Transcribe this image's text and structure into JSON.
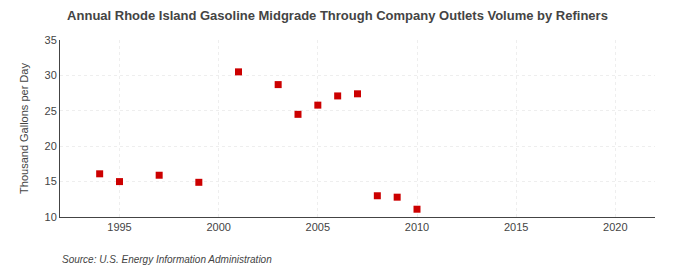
{
  "chart_data": {
    "type": "scatter",
    "title": "Annual Rhode Island Gasoline Midgrade Through Company Outlets Volume by Refiners",
    "ylabel": "Thousand Gallons per Day",
    "annotations": [
      "Source: U.S. Energy Information Administration"
    ],
    "x": [
      1994,
      1995,
      1997,
      1999,
      2001,
      2003,
      2004,
      2005,
      2006,
      2007,
      2008,
      2009,
      2010
    ],
    "values": [
      16.1,
      15.0,
      15.9,
      14.9,
      30.5,
      28.7,
      24.5,
      25.8,
      27.1,
      27.4,
      13.0,
      12.8,
      11.1
    ],
    "color": "#cc0000",
    "marker": "square",
    "xlim": [
      1992,
      2022
    ],
    "ylim": [
      10,
      35
    ],
    "xticks": [
      1995,
      2000,
      2005,
      2010,
      2015,
      2020
    ],
    "yticks": [
      10,
      15,
      20,
      25,
      30,
      35
    ],
    "grid": true
  }
}
